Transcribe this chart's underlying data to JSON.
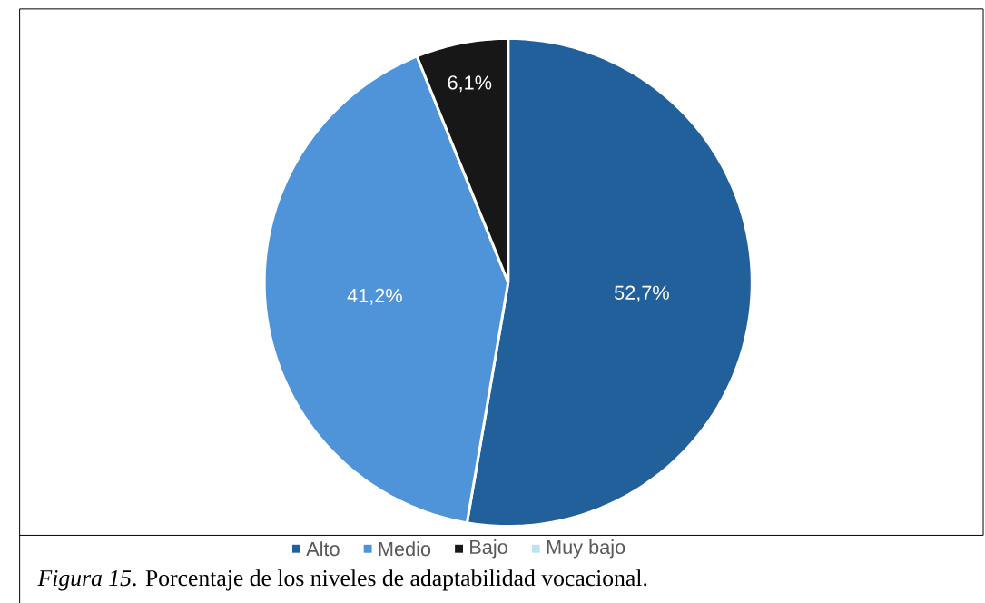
{
  "chart_data": {
    "type": "pie",
    "categories": [
      "Alto",
      "Medio",
      "Bajo",
      "Muy bajo"
    ],
    "values": [
      52.7,
      41.2,
      6.1,
      0
    ],
    "colors": [
      "#22609c",
      "#4f94d8",
      "#171717",
      "#bde3f2"
    ],
    "value_labels": [
      "52,7%",
      "41,2%",
      "6,1%",
      null
    ],
    "legend": "bottom",
    "annotations": [
      "*Figura 15*. Porcentaje de los niveles de adaptabilidad vocacional."
    ]
  }
}
